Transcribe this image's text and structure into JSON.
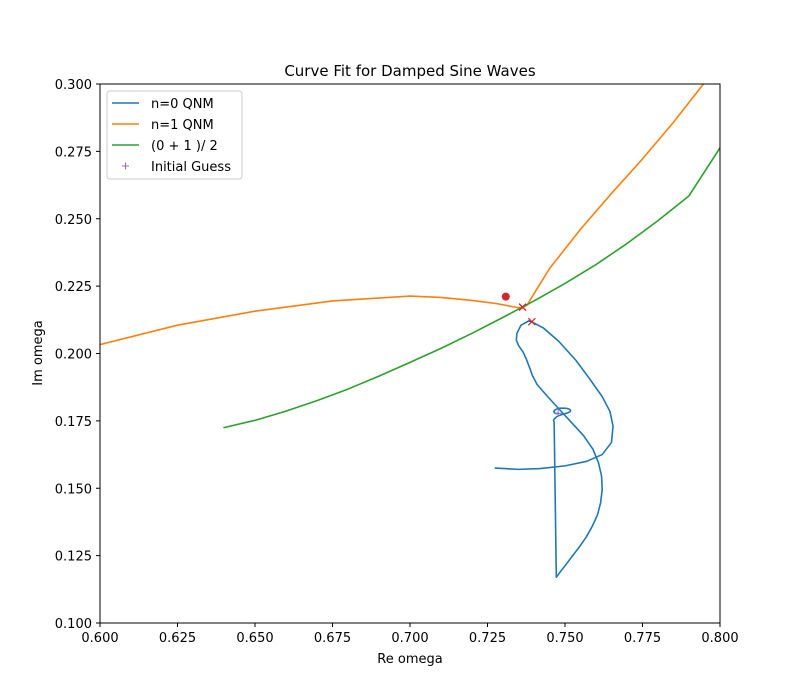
{
  "chart_data": {
    "type": "line",
    "title": "Curve Fit for Damped Sine Waves",
    "xlabel": "Re omega",
    "ylabel": "Im omega",
    "xlim": [
      0.6,
      0.8
    ],
    "ylim": [
      0.1,
      0.3
    ],
    "xticks": [
      "0.600",
      "0.625",
      "0.650",
      "0.675",
      "0.700",
      "0.725",
      "0.750",
      "0.775",
      "0.800"
    ],
    "yticks": [
      "0.100",
      "0.125",
      "0.150",
      "0.175",
      "0.200",
      "0.225",
      "0.250",
      "0.275",
      "0.300"
    ],
    "grid": false,
    "legend_position": "top-left",
    "series": [
      {
        "name": "n=0 QNM",
        "color": "#1f77b4",
        "x": [
          0.7275,
          0.735,
          0.742,
          0.75,
          0.757,
          0.762,
          0.765,
          0.7655,
          0.7645,
          0.762,
          0.758,
          0.7535,
          0.748,
          0.743,
          0.7385,
          0.7358,
          0.7345,
          0.7343,
          0.735,
          0.7365,
          0.7375,
          0.7385,
          0.7395,
          0.741,
          0.744,
          0.748,
          0.752,
          0.756,
          0.759,
          0.7608,
          0.7618,
          0.762,
          0.7615,
          0.7605,
          0.7588,
          0.7568,
          0.7545,
          0.7522,
          0.7502,
          0.7485,
          0.7472,
          0.7465,
          0.7463,
          0.7466,
          0.7474,
          0.7486,
          0.7498,
          0.7509,
          0.7516,
          0.7518,
          0.7515,
          0.7507,
          0.7496,
          0.7484,
          0.7473,
          0.7466,
          0.7464,
          0.7466,
          0.7471,
          0.7476
        ],
        "y": [
          0.1575,
          0.157,
          0.1573,
          0.1583,
          0.16,
          0.1625,
          0.167,
          0.173,
          0.1785,
          0.184,
          0.1905,
          0.1975,
          0.2045,
          0.2095,
          0.2122,
          0.2105,
          0.2075,
          0.205,
          0.203,
          0.2005,
          0.198,
          0.195,
          0.1918,
          0.1885,
          0.1845,
          0.1795,
          0.1745,
          0.1695,
          0.1645,
          0.1595,
          0.1545,
          0.1495,
          0.1447,
          0.1402,
          0.1359,
          0.1318,
          0.128,
          0.1246,
          0.1215,
          0.119,
          0.117,
          0.1744,
          0.1752,
          0.1758,
          0.1766,
          0.1772,
          0.1776,
          0.178,
          0.1784,
          0.1788,
          0.1793,
          0.1796,
          0.1797,
          0.1797,
          0.1794,
          0.1789,
          0.1784,
          0.178,
          0.1777,
          0.1777
        ]
      },
      {
        "name": "n=1 QNM",
        "color": "#ff7f0e",
        "x": [
          0.6,
          0.625,
          0.65,
          0.675,
          0.7,
          0.71,
          0.72,
          0.728,
          0.7335,
          0.736,
          0.7378,
          0.74,
          0.745,
          0.755,
          0.765,
          0.775,
          0.785,
          0.795
        ],
        "y": [
          0.2033,
          0.2105,
          0.2157,
          0.2195,
          0.2213,
          0.2208,
          0.2197,
          0.2185,
          0.2173,
          0.2168,
          0.218,
          0.2222,
          0.2315,
          0.2461,
          0.2594,
          0.2722,
          0.2858,
          0.3005
        ]
      },
      {
        "name": "(0 + 1 )/ 2",
        "color": "#2ca02c",
        "x": [
          0.64,
          0.65,
          0.66,
          0.67,
          0.68,
          0.69,
          0.7,
          0.71,
          0.72,
          0.73,
          0.74,
          0.75,
          0.76,
          0.77,
          0.78,
          0.79,
          0.8
        ],
        "y": [
          0.1725,
          0.1752,
          0.1786,
          0.1825,
          0.1868,
          0.1916,
          0.1967,
          0.2019,
          0.2075,
          0.2134,
          0.2195,
          0.226,
          0.233,
          0.2408,
          0.2493,
          0.2585,
          0.2763
        ]
      },
      {
        "name": "Initial Guess",
        "color": "#9467bd",
        "marker": "+",
        "x": [
          0.7478
        ],
        "y": [
          0.1778
        ]
      }
    ],
    "extra_markers": [
      {
        "shape": "x",
        "color": "#d62728",
        "x": 0.7363,
        "y": 0.2172
      },
      {
        "shape": "x",
        "color": "#d62728",
        "x": 0.7393,
        "y": 0.2118
      },
      {
        "shape": "dot",
        "color": "#d62728",
        "x": 0.7309,
        "y": 0.2211
      }
    ]
  }
}
